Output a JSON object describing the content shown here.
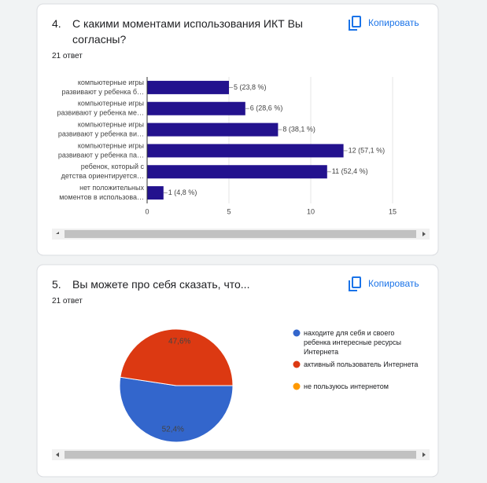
{
  "cards": [
    {
      "number": "4.",
      "responses": "21 ответ",
      "copy": "Копировать"
    },
    {
      "number": "5.",
      "responses": "21 ответ",
      "copy": "Копировать"
    }
  ],
  "chart_data": [
    {
      "type": "hbar",
      "title": "С какими моментами использования ИКТ Вы согласны?",
      "categories": [
        [
          "компьютерные игры",
          "развивают у ребенка б…"
        ],
        [
          "компьютерные игры",
          "развивают у ребенка ме…"
        ],
        [
          "компьютерные игры",
          "развивают у ребенка ви…"
        ],
        [
          "компьютерные игры",
          "развивают у ребенка па…"
        ],
        [
          "ребенок, который с",
          "детства ориентируется…"
        ],
        [
          "нет положительных",
          "моментов в использова…"
        ]
      ],
      "values": [
        5,
        6,
        8,
        12,
        11,
        1
      ],
      "value_labels": [
        "5 (23,8 %)",
        "6 (28,6 %)",
        "8 (38,1 %)",
        "12 (57,1 %)",
        "11 (52,4 %)",
        "1 (4,8 %)"
      ],
      "color": "#23128e",
      "xlim": [
        0,
        15
      ],
      "xticks": [
        0,
        5,
        10,
        15
      ],
      "grid": true
    },
    {
      "type": "pie",
      "title": "Вы можете про себя сказать, что...",
      "series": [
        {
          "name": "находите для себя и своего ребенка интересные ресурсы Интернета",
          "color": "#3366cc"
        },
        {
          "name": "активный пользователь Интернета",
          "color": "#dc3912"
        },
        {
          "name": "не пользуюсь интернетом",
          "color": "#ff9900"
        }
      ],
      "values": [
        52.4,
        47.6,
        0
      ],
      "value_labels": [
        "52,4%",
        "47,6%",
        null
      ]
    }
  ]
}
